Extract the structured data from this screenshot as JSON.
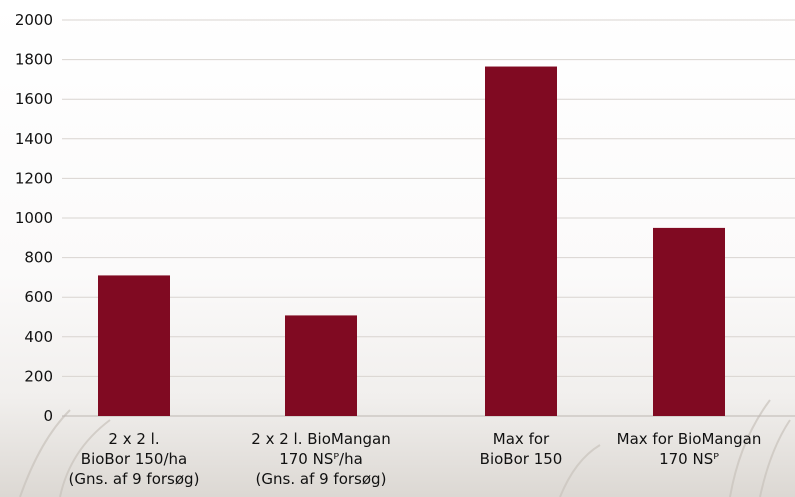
{
  "chart_data": {
    "type": "bar",
    "categories": [
      [
        "2 x 2 l.",
        "BioBor 150/ha",
        "(Gns. af 9 forsøg)"
      ],
      [
        "2 x 2 l. BioMangan",
        "170 NSᴾ/ha",
        "(Gns. af 9 forsøg)"
      ],
      [
        "Max for",
        "BioBor 150"
      ],
      [
        "Max for BioMangan",
        "170 NSᴾ"
      ]
    ],
    "values": [
      710,
      508,
      1765,
      950
    ],
    "ylim": [
      0,
      2000
    ],
    "yticks": [
      0,
      200,
      400,
      600,
      800,
      1000,
      1200,
      1400,
      1600,
      1800,
      2000
    ],
    "grid": true,
    "colors": {
      "bar": "#800a22",
      "grid": "#d9d4d0",
      "text": "#111111"
    }
  }
}
